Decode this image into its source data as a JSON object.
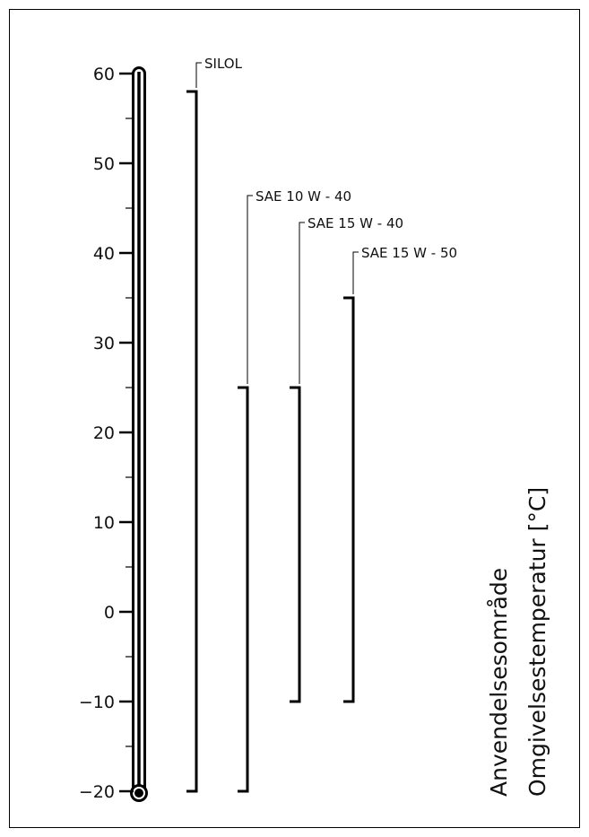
{
  "chart_data": {
    "type": "range-bar",
    "axis": {
      "ylim": [
        -20,
        60
      ],
      "major_ticks": [
        60,
        50,
        40,
        30,
        20,
        10,
        0,
        -10,
        -20
      ],
      "tick_labels": [
        "60",
        "50",
        "40",
        "30",
        "20",
        "10",
        "0",
        "−10",
        "−20"
      ],
      "minor_step": 5
    },
    "series": [
      {
        "name": "SILOL",
        "min": -20,
        "max": 58
      },
      {
        "name": "SAE 10 W - 40",
        "min": -20,
        "max": 25
      },
      {
        "name": "SAE 15 W - 40",
        "min": -10,
        "max": 25
      },
      {
        "name": "SAE 15 W - 50",
        "min": -10,
        "max": 35
      }
    ],
    "axis_title_lines": [
      "Anvendelsesområde",
      "Omgivelsestemperatur [°C]"
    ]
  }
}
